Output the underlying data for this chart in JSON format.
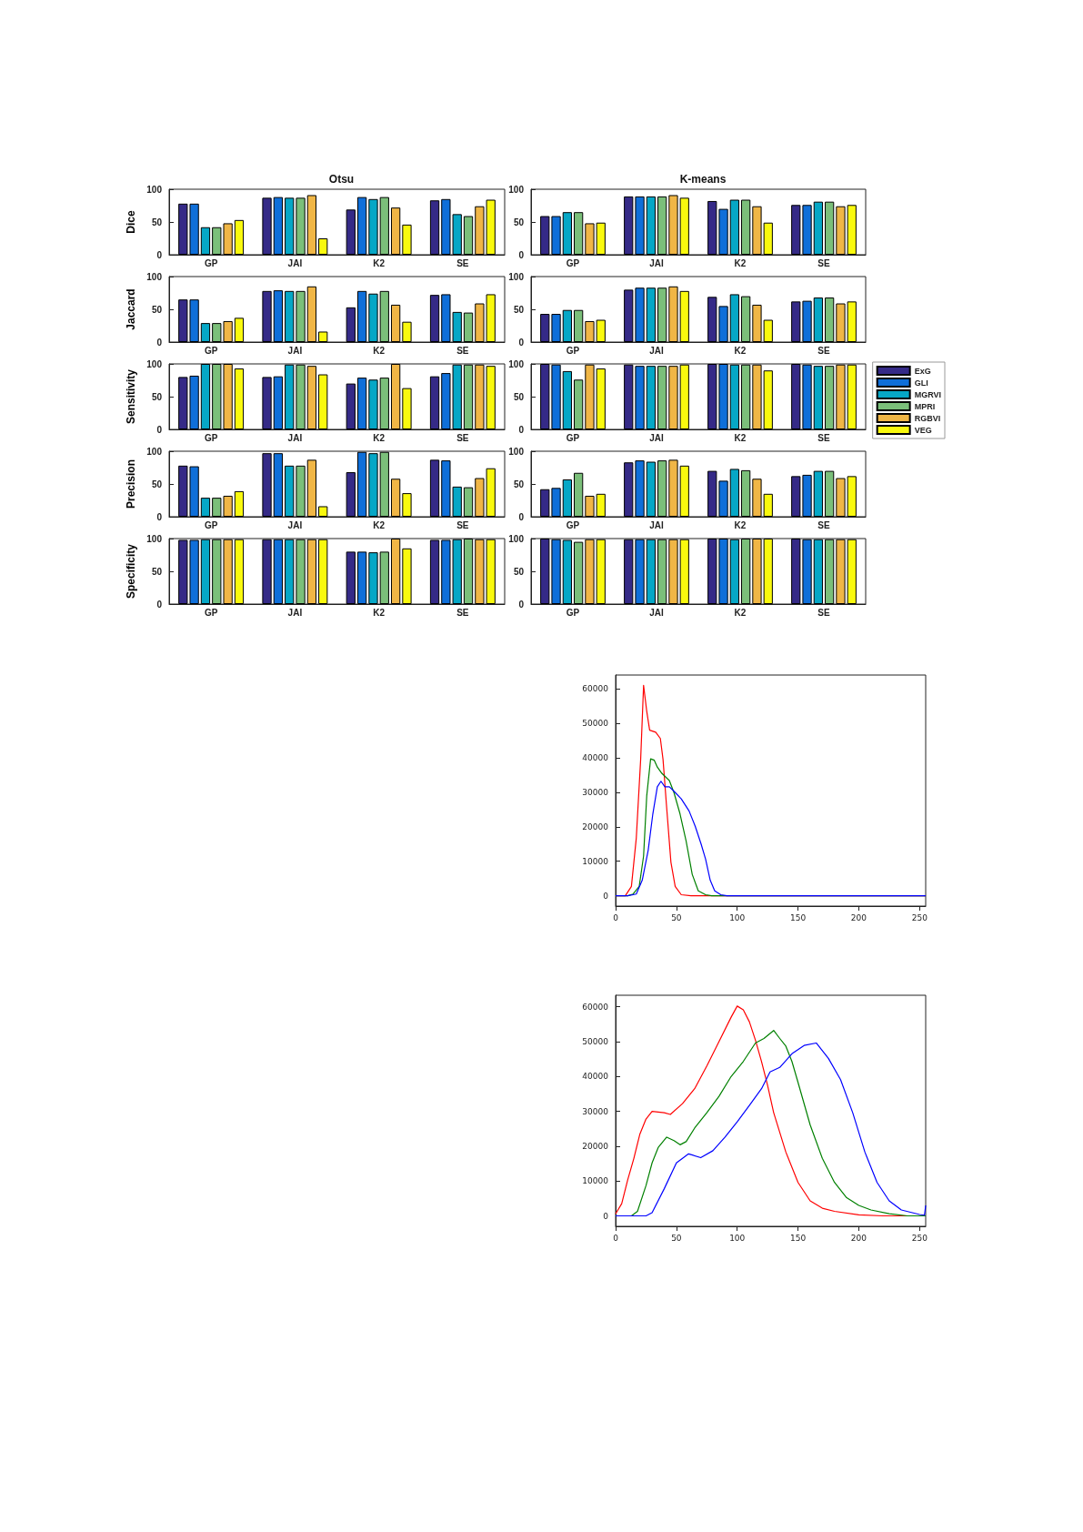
{
  "chart_data": [
    {
      "type": "bar",
      "title": "Otsu",
      "ylabel": "Dice",
      "categories": [
        "GP",
        "JAI",
        "K2",
        "SE"
      ],
      "ylim": [
        0,
        100
      ],
      "yticks": [
        0,
        50,
        100
      ],
      "series": [
        {
          "color": "#352a87",
          "values": [
            78,
            87,
            69,
            83
          ]
        },
        {
          "color": "#0f6fd9",
          "values": [
            78,
            88,
            88,
            85
          ]
        },
        {
          "color": "#06a7c6",
          "values": [
            42,
            87,
            85,
            62
          ]
        },
        {
          "color": "#7bbf7a",
          "values": [
            42,
            87,
            88,
            59
          ]
        },
        {
          "color": "#f0b646",
          "values": [
            48,
            91,
            72,
            74
          ]
        },
        {
          "color": "#f9f90e",
          "values": [
            53,
            25,
            46,
            84
          ]
        }
      ]
    },
    {
      "type": "bar",
      "title": "K-means",
      "categories": [
        "GP",
        "JAI",
        "K2",
        "SE"
      ],
      "ylim": [
        0,
        100
      ],
      "yticks": [
        0,
        50,
        100
      ],
      "series": [
        {
          "color": "#352a87",
          "values": [
            59,
            89,
            82,
            76
          ]
        },
        {
          "color": "#0f6fd9",
          "values": [
            59,
            89,
            70,
            76
          ]
        },
        {
          "color": "#06a7c6",
          "values": [
            65,
            89,
            84,
            81
          ]
        },
        {
          "color": "#7bbf7a",
          "values": [
            65,
            89,
            84,
            81
          ]
        },
        {
          "color": "#f0b646",
          "values": [
            48,
            91,
            74,
            74
          ]
        },
        {
          "color": "#f9f90e",
          "values": [
            49,
            87,
            49,
            76
          ]
        }
      ]
    },
    {
      "type": "bar",
      "ylabel": "Jaccard",
      "categories": [
        "GP",
        "JAI",
        "K2",
        "SE"
      ],
      "ylim": [
        0,
        100
      ],
      "yticks": [
        0,
        50,
        100
      ],
      "series": [
        {
          "color": "#352a87",
          "values": [
            65,
            78,
            53,
            72
          ]
        },
        {
          "color": "#0f6fd9",
          "values": [
            65,
            79,
            78,
            73
          ]
        },
        {
          "color": "#06a7c6",
          "values": [
            29,
            78,
            74,
            46
          ]
        },
        {
          "color": "#7bbf7a",
          "values": [
            29,
            78,
            78,
            45
          ]
        },
        {
          "color": "#f0b646",
          "values": [
            32,
            85,
            57,
            59
          ]
        },
        {
          "color": "#f9f90e",
          "values": [
            37,
            16,
            31,
            73
          ]
        }
      ]
    },
    {
      "type": "bar",
      "categories": [
        "GP",
        "JAI",
        "K2",
        "SE"
      ],
      "ylim": [
        0,
        100
      ],
      "yticks": [
        0,
        50,
        100
      ],
      "series": [
        {
          "color": "#352a87",
          "values": [
            43,
            80,
            69,
            62
          ]
        },
        {
          "color": "#0f6fd9",
          "values": [
            43,
            83,
            55,
            63
          ]
        },
        {
          "color": "#06a7c6",
          "values": [
            49,
            83,
            73,
            68
          ]
        },
        {
          "color": "#7bbf7a",
          "values": [
            49,
            83,
            70,
            68
          ]
        },
        {
          "color": "#f0b646",
          "values": [
            32,
            85,
            57,
            59
          ]
        },
        {
          "color": "#f9f90e",
          "values": [
            34,
            78,
            34,
            62
          ]
        }
      ]
    },
    {
      "type": "bar",
      "ylabel": "Sensitivity",
      "categories": [
        "GP",
        "JAI",
        "K2",
        "SE"
      ],
      "ylim": [
        0,
        100
      ],
      "yticks": [
        0,
        50,
        100
      ],
      "series": [
        {
          "color": "#352a87",
          "values": [
            80,
            80,
            70,
            81
          ]
        },
        {
          "color": "#0f6fd9",
          "values": [
            82,
            81,
            79,
            86
          ]
        },
        {
          "color": "#06a7c6",
          "values": [
            100,
            99,
            76,
            99
          ]
        },
        {
          "color": "#7bbf7a",
          "values": [
            100,
            99,
            79,
            99
          ]
        },
        {
          "color": "#f0b646",
          "values": [
            100,
            97,
            100,
            99
          ]
        },
        {
          "color": "#f9f90e",
          "values": [
            93,
            84,
            63,
            97
          ]
        }
      ]
    },
    {
      "type": "bar",
      "legend": "right",
      "categories": [
        "GP",
        "JAI",
        "K2",
        "SE"
      ],
      "ylim": [
        0,
        100
      ],
      "yticks": [
        0,
        50,
        100
      ],
      "series": [
        {
          "name": "ExG",
          "color": "#352a87",
          "values": [
            100,
            99,
            100,
            100
          ]
        },
        {
          "name": "GLI",
          "color": "#0f6fd9",
          "values": [
            99,
            97,
            100,
            99
          ]
        },
        {
          "name": "MGRVI",
          "color": "#06a7c6",
          "values": [
            89,
            97,
            99,
            97
          ]
        },
        {
          "name": "MPRI",
          "color": "#7bbf7a",
          "values": [
            76,
            97,
            99,
            97
          ]
        },
        {
          "name": "RGBVI",
          "color": "#f0b646",
          "values": [
            99,
            97,
            99,
            99
          ]
        },
        {
          "name": "VEG",
          "color": "#f9f90e",
          "values": [
            93,
            99,
            90,
            99
          ]
        }
      ]
    },
    {
      "type": "bar",
      "ylabel": "Precision",
      "categories": [
        "GP",
        "JAI",
        "K2",
        "SE"
      ],
      "ylim": [
        0,
        100
      ],
      "yticks": [
        0,
        50,
        100
      ],
      "series": [
        {
          "color": "#352a87",
          "values": [
            78,
            97,
            68,
            87
          ]
        },
        {
          "color": "#0f6fd9",
          "values": [
            77,
            97,
            99,
            86
          ]
        },
        {
          "color": "#06a7c6",
          "values": [
            29,
            78,
            97,
            46
          ]
        },
        {
          "color": "#7bbf7a",
          "values": [
            29,
            78,
            99,
            45
          ]
        },
        {
          "color": "#f0b646",
          "values": [
            32,
            87,
            58,
            59
          ]
        },
        {
          "color": "#f9f90e",
          "values": [
            39,
            16,
            36,
            74
          ]
        }
      ]
    },
    {
      "type": "bar",
      "categories": [
        "GP",
        "JAI",
        "K2",
        "SE"
      ],
      "ylim": [
        0,
        100
      ],
      "yticks": [
        0,
        50,
        100
      ],
      "series": [
        {
          "color": "#352a87",
          "values": [
            42,
            83,
            70,
            62
          ]
        },
        {
          "color": "#0f6fd9",
          "values": [
            44,
            86,
            55,
            64
          ]
        },
        {
          "color": "#06a7c6",
          "values": [
            57,
            84,
            73,
            70
          ]
        },
        {
          "color": "#7bbf7a",
          "values": [
            67,
            86,
            71,
            70
          ]
        },
        {
          "color": "#f0b646",
          "values": [
            32,
            87,
            58,
            59
          ]
        },
        {
          "color": "#f9f90e",
          "values": [
            35,
            78,
            35,
            62
          ]
        }
      ]
    },
    {
      "type": "bar",
      "ylabel": "Specificity",
      "categories": [
        "GP",
        "JAI",
        "K2",
        "SE"
      ],
      "ylim": [
        0,
        100
      ],
      "yticks": [
        0,
        50,
        100
      ],
      "series": [
        {
          "color": "#352a87",
          "values": [
            98,
            99,
            80,
            98
          ]
        },
        {
          "color": "#0f6fd9",
          "values": [
            98,
            99,
            80,
            98
          ]
        },
        {
          "color": "#06a7c6",
          "values": [
            99,
            99,
            79,
            99
          ]
        },
        {
          "color": "#7bbf7a",
          "values": [
            99,
            99,
            80,
            100
          ]
        },
        {
          "color": "#f0b646",
          "values": [
            99,
            99,
            100,
            99
          ]
        },
        {
          "color": "#f9f90e",
          "values": [
            99,
            99,
            85,
            99
          ]
        }
      ]
    },
    {
      "type": "bar",
      "categories": [
        "GP",
        "JAI",
        "K2",
        "SE"
      ],
      "ylim": [
        0,
        100
      ],
      "yticks": [
        0,
        50,
        100
      ],
      "series": [
        {
          "color": "#352a87",
          "values": [
            100,
            99,
            100,
            100
          ]
        },
        {
          "color": "#0f6fd9",
          "values": [
            99,
            99,
            100,
            99
          ]
        },
        {
          "color": "#06a7c6",
          "values": [
            98,
            99,
            99,
            99
          ]
        },
        {
          "color": "#7bbf7a",
          "values": [
            95,
            99,
            100,
            99
          ]
        },
        {
          "color": "#f0b646",
          "values": [
            99,
            99,
            100,
            99
          ]
        },
        {
          "color": "#f9f90e",
          "values": [
            99,
            99,
            100,
            99
          ]
        }
      ]
    },
    {
      "type": "line",
      "marker": "none",
      "xlim": [
        0,
        255
      ],
      "ylim": [
        -3000,
        64000
      ],
      "xticks": [
        0,
        50,
        100,
        150,
        200,
        250
      ],
      "yticks": [
        0,
        10000,
        20000,
        30000,
        40000,
        50000,
        60000
      ],
      "series": [
        {
          "color": "#ff0000",
          "x": [
            0,
            8,
            13,
            17,
            20.6,
            23,
            25.6,
            28,
            33,
            36.8,
            39,
            41.8,
            45.5,
            49,
            54,
            62,
            255
          ],
          "values": [
            0,
            0,
            2700,
            16700,
            39500,
            61000,
            53500,
            48000,
            47400,
            45600,
            39500,
            26400,
            9700,
            2700,
            300,
            0,
            0
          ]
        },
        {
          "color": "#008000",
          "x": [
            0,
            10,
            14.4,
            19.4,
            23,
            25.6,
            28.8,
            31.8,
            34.3,
            38,
            44.2,
            48,
            53,
            58,
            63,
            68,
            74,
            79,
            255
          ],
          "values": [
            0,
            0,
            500,
            2700,
            11500,
            29000,
            39700,
            39300,
            37300,
            35500,
            33400,
            29900,
            23700,
            15800,
            6200,
            1400,
            300,
            0,
            0
          ]
        },
        {
          "color": "#0000ff",
          "x": [
            0,
            10,
            17,
            21.9,
            26.8,
            30.6,
            34.3,
            37.3,
            40.5,
            44.2,
            48,
            54,
            60.4,
            65.4,
            70.3,
            74,
            77.8,
            81.5,
            86.5,
            91.5,
            255
          ],
          "values": [
            0,
            0,
            500,
            4500,
            13200,
            23700,
            31600,
            33200,
            31600,
            31600,
            30300,
            28100,
            24600,
            20200,
            15000,
            10600,
            4500,
            1400,
            300,
            0,
            0
          ]
        }
      ]
    },
    {
      "type": "line",
      "marker": "none",
      "xlim": [
        0,
        255
      ],
      "ylim": [
        -3000,
        63300
      ],
      "xticks": [
        0,
        50,
        100,
        150,
        200,
        250
      ],
      "yticks": [
        0,
        10000,
        20000,
        30000,
        40000,
        50000,
        60000
      ],
      "series": [
        {
          "color": "#ff0000",
          "x": [
            0,
            5,
            10,
            15,
            20,
            25,
            30,
            40,
            45,
            55,
            65,
            75,
            85,
            95,
            100,
            105,
            110,
            115,
            120,
            125,
            130,
            140,
            150,
            160,
            170,
            180,
            200,
            220,
            255
          ],
          "values": [
            600,
            3500,
            10400,
            16500,
            23500,
            27800,
            30000,
            29600,
            29100,
            32200,
            36500,
            43000,
            50000,
            57000,
            60200,
            59100,
            55700,
            50400,
            44300,
            37400,
            29600,
            18300,
            9600,
            4300,
            2200,
            1300,
            300,
            0,
            0
          ]
        },
        {
          "color": "#008000",
          "x": [
            0,
            13,
            18,
            25,
            30,
            35,
            42,
            48,
            53,
            58,
            65,
            75,
            85,
            95,
            105,
            115,
            122,
            130,
            135,
            140,
            145,
            150,
            160,
            170,
            180,
            190,
            200,
            210,
            225,
            240,
            255
          ],
          "values": [
            0,
            0,
            1300,
            8700,
            15200,
            19600,
            22600,
            21600,
            20400,
            21300,
            25200,
            29600,
            34300,
            40000,
            44300,
            49600,
            50900,
            53200,
            50900,
            48700,
            44300,
            38300,
            26100,
            16500,
            9600,
            5200,
            3000,
            1700,
            600,
            0,
            0
          ]
        },
        {
          "color": "#0000ff",
          "x": [
            0,
            25,
            30,
            40,
            50,
            60,
            70,
            80,
            90,
            100,
            110,
            120,
            127,
            135,
            145,
            155,
            165,
            175,
            185,
            195,
            205,
            215,
            225,
            235,
            250,
            254,
            255
          ],
          "values": [
            0,
            0,
            900,
            7800,
            15200,
            17800,
            16700,
            18700,
            22600,
            27000,
            31700,
            36500,
            41300,
            42600,
            46500,
            48900,
            49600,
            45200,
            39100,
            29600,
            18300,
            9600,
            4300,
            1700,
            400,
            200,
            3000
          ]
        }
      ]
    }
  ]
}
